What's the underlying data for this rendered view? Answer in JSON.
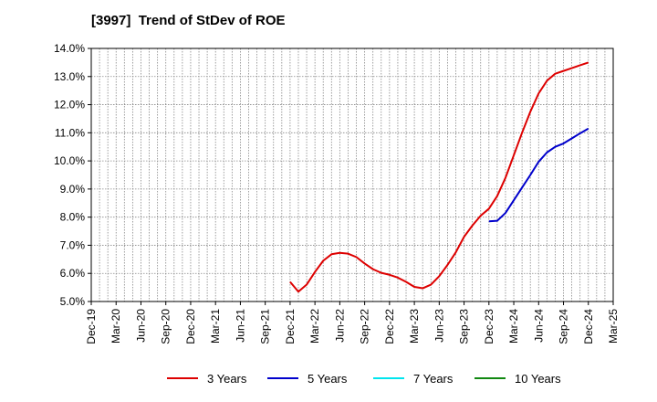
{
  "chart_data": {
    "type": "line",
    "title": "[3997]  Trend of StDev of ROE",
    "xlabel": "",
    "ylabel": "",
    "x_ticks": [
      "Dec-19",
      "Mar-20",
      "Jun-20",
      "Sep-20",
      "Dec-20",
      "Mar-21",
      "Jun-21",
      "Sep-21",
      "Dec-21",
      "Mar-22",
      "Jun-22",
      "Sep-22",
      "Dec-22",
      "Mar-23",
      "Jun-23",
      "Sep-23",
      "Dec-23",
      "Mar-24",
      "Jun-24",
      "Sep-24",
      "Dec-24",
      "Mar-25"
    ],
    "y_ticks": [
      "5.0%",
      "6.0%",
      "7.0%",
      "8.0%",
      "9.0%",
      "10.0%",
      "11.0%",
      "12.0%",
      "13.0%",
      "14.0%"
    ],
    "ylim": [
      5.0,
      14.0
    ],
    "grid": true,
    "legend_position": "bottom",
    "series": [
      {
        "name": "3 Years",
        "color": "#dd0000",
        "x": [
          "Dec-21",
          "Jan-22",
          "Feb-22",
          "Mar-22",
          "Apr-22",
          "May-22",
          "Jun-22",
          "Jul-22",
          "Aug-22",
          "Sep-22",
          "Oct-22",
          "Nov-22",
          "Dec-22",
          "Jan-23",
          "Feb-23",
          "Mar-23",
          "Apr-23",
          "May-23",
          "Jun-23",
          "Jul-23",
          "Aug-23",
          "Sep-23",
          "Oct-23",
          "Nov-23",
          "Dec-23",
          "Jan-24",
          "Feb-24",
          "Mar-24",
          "Apr-24",
          "May-24",
          "Jun-24",
          "Jul-24",
          "Aug-24",
          "Sep-24",
          "Oct-24",
          "Nov-24",
          "Dec-24"
        ],
        "values": [
          5.7,
          5.35,
          5.6,
          6.05,
          6.45,
          6.68,
          6.73,
          6.7,
          6.58,
          6.35,
          6.15,
          6.02,
          5.95,
          5.85,
          5.7,
          5.52,
          5.47,
          5.6,
          5.9,
          6.3,
          6.75,
          7.3,
          7.7,
          8.05,
          8.3,
          8.75,
          9.4,
          10.2,
          11.0,
          11.75,
          12.4,
          12.85,
          13.1,
          13.2,
          13.3,
          13.4,
          13.5
        ]
      },
      {
        "name": "5 Years",
        "color": "#0000cc",
        "x": [
          "Dec-23",
          "Jan-24",
          "Feb-24",
          "Mar-24",
          "Apr-24",
          "May-24",
          "Jun-24",
          "Jul-24",
          "Aug-24",
          "Sep-24",
          "Oct-24",
          "Nov-24",
          "Dec-24"
        ],
        "values": [
          7.85,
          7.87,
          8.15,
          8.6,
          9.05,
          9.5,
          9.97,
          10.3,
          10.5,
          10.62,
          10.8,
          10.98,
          11.15
        ]
      },
      {
        "name": "7 Years",
        "color": "#00e5ee",
        "x": [],
        "values": []
      },
      {
        "name": "10 Years",
        "color": "#118811",
        "x": [],
        "values": []
      }
    ]
  }
}
